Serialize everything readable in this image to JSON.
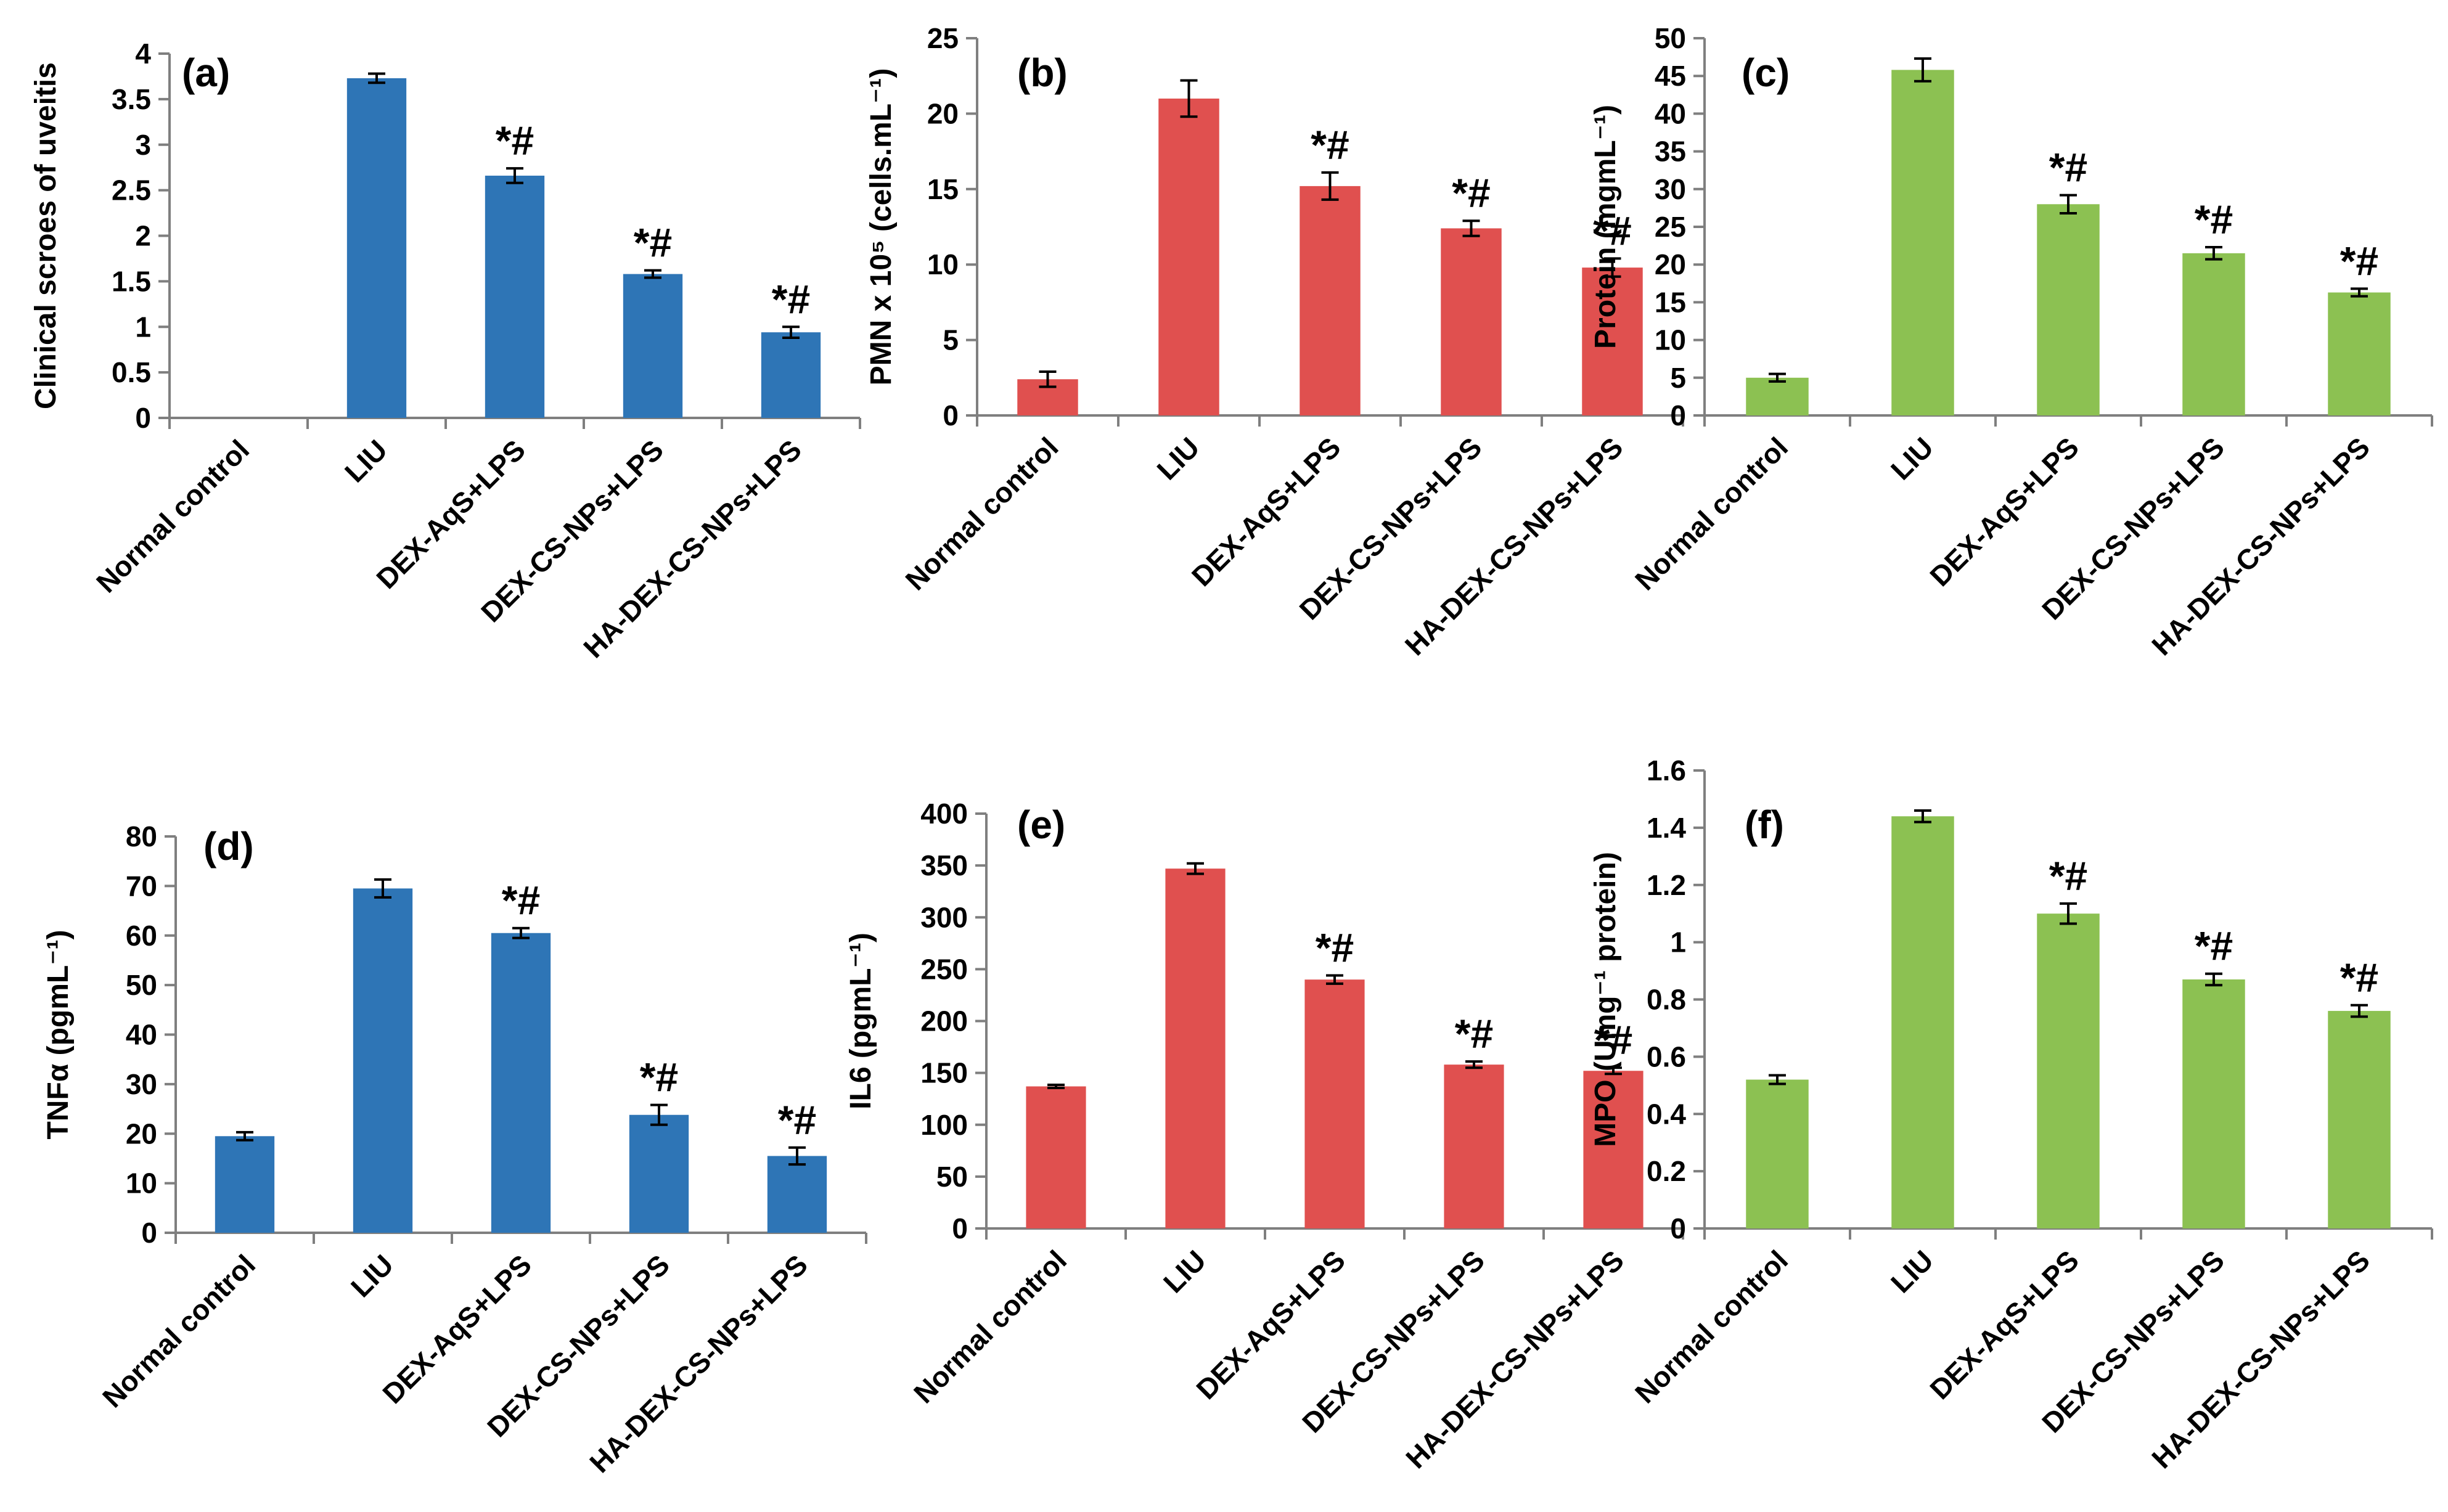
{
  "chart_data": [
    {
      "type": "bar",
      "panel_label": "(a)",
      "ylabel": "Clinical scroes of uveitis",
      "categories": [
        "Normal control",
        "LIU",
        "DEX-AqS+LPS",
        "DEX-CS-NPs+LPS",
        "HA-DEX-CS-NPs+LPS"
      ],
      "values": [
        0,
        3.73,
        2.66,
        1.58,
        0.94
      ],
      "errors": [
        0,
        0.05,
        0.08,
        0.04,
        0.06
      ],
      "annotations": [
        "",
        "",
        "*#",
        "*#",
        "*#"
      ],
      "ylim": [
        0,
        4
      ],
      "yticks": [
        "0",
        "0.5",
        "1",
        "1.5",
        "2",
        "2.5",
        "3",
        "3.5",
        "4"
      ],
      "color": "#2e75b6"
    },
    {
      "type": "bar",
      "panel_label": "(b)",
      "ylabel": "PMN x 10⁵ (cells.mL⁻¹)",
      "categories": [
        "Normal control",
        "LIU",
        "DEX-AqS+LPS",
        "DEX-CS-NPs+LPS",
        "HA-DEX-CS-NPs+LPS"
      ],
      "values": [
        2.4,
        21.0,
        15.2,
        12.4,
        9.8
      ],
      "errors": [
        0.5,
        1.2,
        0.9,
        0.5,
        0.6
      ],
      "annotations": [
        "",
        "",
        "*#",
        "*#",
        "*#"
      ],
      "ylim": [
        0,
        25
      ],
      "yticks": [
        "0",
        "5",
        "10",
        "15",
        "20",
        "25"
      ],
      "color": "#e0504f"
    },
    {
      "type": "bar",
      "panel_label": "(c)",
      "ylabel": "Protein (mgmL⁻¹)",
      "categories": [
        "Normal control",
        "LIU",
        "DEX-AqS+LPS",
        "DEX-CS-NPs+LPS",
        "HA-DEX-CS-NPs+LPS"
      ],
      "values": [
        5.0,
        45.8,
        28.0,
        21.5,
        16.3
      ],
      "errors": [
        0.5,
        1.5,
        1.2,
        0.8,
        0.5
      ],
      "annotations": [
        "",
        "",
        "*#",
        "*#",
        "*#"
      ],
      "ylim": [
        0,
        50
      ],
      "yticks": [
        "0",
        "5",
        "10",
        "15",
        "20",
        "25",
        "30",
        "35",
        "40",
        "45",
        "50"
      ],
      "color": "#8cc152"
    },
    {
      "type": "bar",
      "panel_label": "(d)",
      "ylabel": "TNFα (pgmL⁻¹)",
      "categories": [
        "Normal control",
        "LIU",
        "DEX-AqS+LPS",
        "DEX-CS-NPs+LPS",
        "HA-DEX-CS-NPs+LPS"
      ],
      "values": [
        19.5,
        69.5,
        60.5,
        23.8,
        15.5
      ],
      "errors": [
        0.8,
        1.8,
        1.0,
        2.0,
        1.7
      ],
      "annotations": [
        "",
        "",
        "*#",
        "*#",
        "*#"
      ],
      "ylim": [
        0,
        80
      ],
      "yticks": [
        "0",
        "10",
        "20",
        "30",
        "40",
        "50",
        "60",
        "70",
        "80"
      ],
      "color": "#2e75b6"
    },
    {
      "type": "bar",
      "panel_label": "(e)",
      "ylabel": "IL6 (pgmL⁻¹)",
      "categories": [
        "Normal control",
        "LIU",
        "DEX-AqS+LPS",
        "DEX-CS-NPs+LPS",
        "HA-DEX-CS-NPs+LPS"
      ],
      "values": [
        137,
        347,
        240,
        158,
        152
      ],
      "errors": [
        1.5,
        5,
        4,
        3,
        3
      ],
      "annotations": [
        "",
        "",
        "*#",
        "*#",
        "*#"
      ],
      "ylim": [
        0,
        400
      ],
      "yticks": [
        "0",
        "50",
        "100",
        "150",
        "200",
        "250",
        "300",
        "350",
        "400"
      ],
      "color": "#e0504f"
    },
    {
      "type": "bar",
      "panel_label": "(f)",
      "ylabel": "MPO (Umg⁻¹ protein)",
      "categories": [
        "Normal control",
        "LIU",
        "DEX-AqS+LPS",
        "DEX-CS-NPs+LPS",
        "HA-DEX-CS-NPs+LPS"
      ],
      "values": [
        0.52,
        1.44,
        1.1,
        0.87,
        0.76
      ],
      "errors": [
        0.015,
        0.02,
        0.035,
        0.02,
        0.02
      ],
      "annotations": [
        "",
        "",
        "*#",
        "*#",
        "*#"
      ],
      "ylim": [
        0,
        1.6
      ],
      "yticks": [
        "0",
        "0.2",
        "0.4",
        "0.6",
        "0.8",
        "1",
        "1.2",
        "1.4",
        "1.6"
      ],
      "color": "#8cc152"
    }
  ]
}
